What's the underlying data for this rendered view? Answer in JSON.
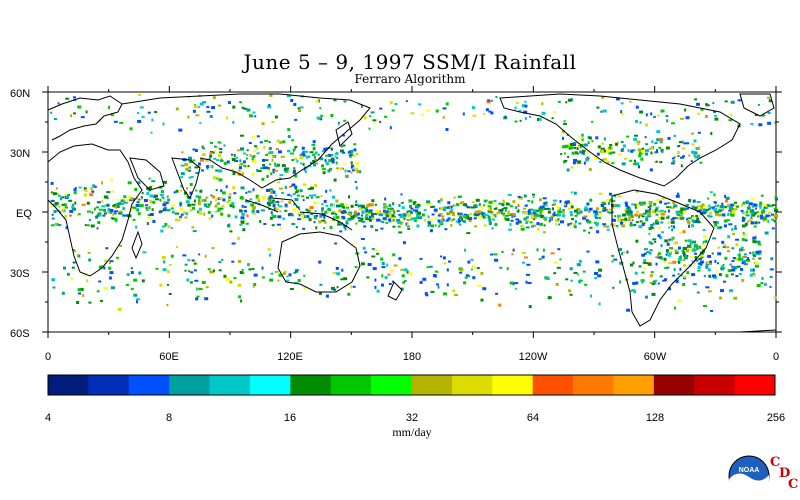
{
  "title": "June 5 – 9, 1997 SSM/I Rainfall",
  "subtitle": "Ferraro Algorithm",
  "lat_labels": [
    "60N",
    "30N",
    "EQ",
    "30S",
    "60S"
  ],
  "lon_labels": [
    "0",
    "60E",
    "120E",
    "180",
    "120W",
    "60W",
    "0"
  ],
  "colorbar": {
    "colors": [
      "#001c7c",
      "#0030b8",
      "#0050ff",
      "#00a0a0",
      "#00c8c8",
      "#00ffff",
      "#008c00",
      "#00c800",
      "#00ff00",
      "#b4b400",
      "#dcdc00",
      "#ffff00",
      "#ff5000",
      "#ff7800",
      "#ffa000",
      "#960000",
      "#c80000",
      "#ff0000"
    ],
    "tick_labels": [
      "4",
      "8",
      "16",
      "32",
      "64",
      "128",
      "256"
    ],
    "unit_label": "mm/day"
  },
  "logo": {
    "text": "NOAA",
    "letters": [
      "C",
      "D",
      "C"
    ]
  }
}
